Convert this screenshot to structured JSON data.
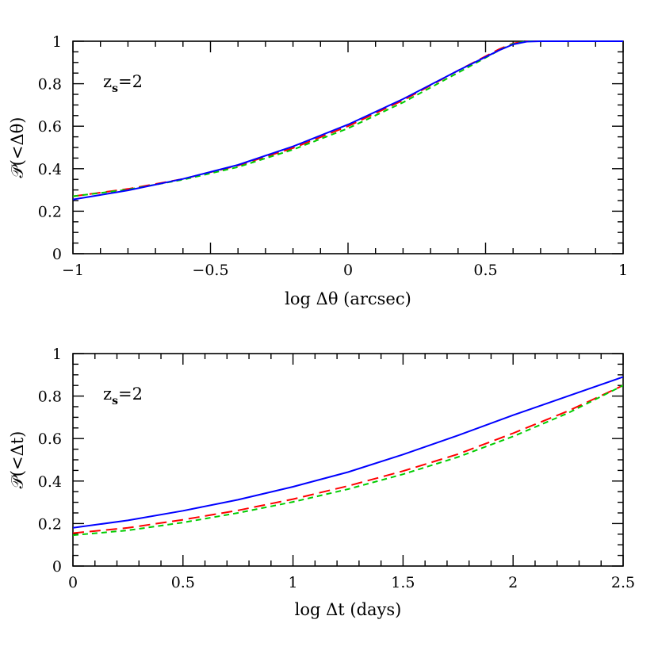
{
  "chart_data": [
    {
      "type": "line",
      "xlabel": "log Δθ (arcsec)",
      "ylabel": "𝒫(<Δθ)",
      "annotation": {
        "text": "z",
        "sub": "s",
        "tail": "=2"
      },
      "xlim": [
        -1,
        1
      ],
      "ylim": [
        0,
        1
      ],
      "xticks": [
        -1,
        -0.5,
        0,
        0.5,
        1
      ],
      "xtick_labels": [
        "−1",
        "−0.5",
        "0",
        "0.5",
        "1"
      ],
      "yticks": [
        0,
        0.2,
        0.4,
        0.6,
        0.8,
        1
      ],
      "ytick_labels": [
        "0",
        "0.2",
        "0.4",
        "0.6",
        "0.8",
        "1"
      ],
      "series": [
        {
          "color": "#ff0000",
          "dash": "14,7",
          "x": [
            -1,
            -0.8,
            -0.6,
            -0.4,
            -0.2,
            0,
            0.2,
            0.4,
            0.55,
            0.6,
            0.65,
            0.7,
            1
          ],
          "y": [
            0.27,
            0.305,
            0.352,
            0.415,
            0.497,
            0.6,
            0.722,
            0.862,
            0.963,
            0.99,
            1.0,
            1.0,
            1.0
          ]
        },
        {
          "color": "#00cc00",
          "dash": "7,5",
          "x": [
            -1,
            -0.8,
            -0.6,
            -0.4,
            -0.2,
            0,
            0.2,
            0.4,
            0.55,
            0.6,
            0.65,
            0.7,
            1
          ],
          "y": [
            0.27,
            0.302,
            0.348,
            0.408,
            0.49,
            0.59,
            0.712,
            0.852,
            0.958,
            0.988,
            1.0,
            1.0,
            1.0
          ]
        },
        {
          "color": "#0000ff",
          "dash": "",
          "x": [
            -1,
            -0.8,
            -0.6,
            -0.4,
            -0.2,
            0,
            0.2,
            0.4,
            0.55,
            0.6,
            0.65,
            0.7,
            1
          ],
          "y": [
            0.255,
            0.298,
            0.352,
            0.418,
            0.505,
            0.608,
            0.728,
            0.862,
            0.958,
            0.985,
            0.998,
            1.0,
            1.0
          ]
        }
      ]
    },
    {
      "type": "line",
      "xlabel": "log Δt  (days)",
      "ylabel": "𝒫(<Δt)",
      "annotation": {
        "text": "z",
        "sub": "s",
        "tail": "=2"
      },
      "xlim": [
        0,
        2.5
      ],
      "ylim": [
        0,
        1
      ],
      "xticks": [
        0,
        0.5,
        1,
        1.5,
        2,
        2.5
      ],
      "xtick_labels": [
        "0",
        "0.5",
        "1",
        "1.5",
        "2",
        "2.5"
      ],
      "yticks": [
        0,
        0.2,
        0.4,
        0.6,
        0.8,
        1
      ],
      "ytick_labels": [
        "0",
        "0.2",
        "0.4",
        "0.6",
        "0.8",
        "1"
      ],
      "series": [
        {
          "color": "#ff0000",
          "dash": "14,7",
          "x": [
            0,
            0.25,
            0.5,
            0.75,
            1,
            1.25,
            1.5,
            1.75,
            2,
            2.25,
            2.5
          ],
          "y": [
            0.155,
            0.18,
            0.218,
            0.262,
            0.315,
            0.377,
            0.447,
            0.527,
            0.625,
            0.73,
            0.85
          ]
        },
        {
          "color": "#00cc00",
          "dash": "7,5",
          "x": [
            0,
            0.25,
            0.5,
            0.75,
            1,
            1.25,
            1.5,
            1.75,
            2,
            2.25,
            2.5
          ],
          "y": [
            0.145,
            0.168,
            0.205,
            0.25,
            0.302,
            0.362,
            0.432,
            0.513,
            0.61,
            0.72,
            0.85
          ]
        },
        {
          "color": "#0000ff",
          "dash": "",
          "x": [
            0,
            0.25,
            0.5,
            0.75,
            1,
            1.25,
            1.5,
            1.75,
            2,
            2.25,
            2.5
          ],
          "y": [
            0.18,
            0.215,
            0.26,
            0.312,
            0.373,
            0.442,
            0.525,
            0.615,
            0.71,
            0.8,
            0.89
          ]
        }
      ]
    }
  ]
}
